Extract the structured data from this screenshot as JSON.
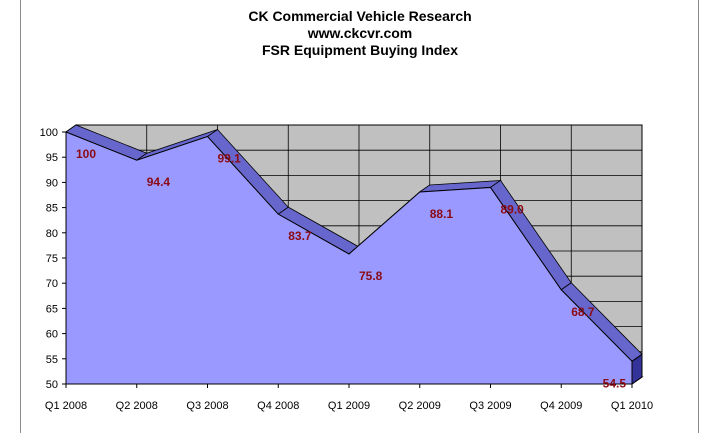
{
  "chart_data": {
    "type": "area",
    "title_lines": [
      "CK Commercial Vehicle Research",
      "www.ckcvr.com",
      "FSR Equipment Buying Index"
    ],
    "categories": [
      "Q1 2008",
      "Q2 2008",
      "Q3 2008",
      "Q4 2008",
      "Q1 2009",
      "Q2 2009",
      "Q3 2009",
      "Q4 2009",
      "Q1 2010"
    ],
    "values": [
      100,
      94.4,
      99.1,
      83.7,
      75.8,
      88.1,
      89.0,
      68.7,
      54.5
    ],
    "data_labels": [
      "100",
      "94.4",
      "99.1",
      "83.7",
      "75.8",
      "88.1",
      "89.0",
      "68.7",
      "54.5"
    ],
    "y_ticks": [
      100,
      95,
      90,
      85,
      80,
      75,
      70,
      65,
      60,
      55,
      50
    ],
    "ylim": [
      50,
      100
    ],
    "grid": true,
    "legend": "none",
    "three_d": true,
    "colors": {
      "area_fill": "#9999ff",
      "area_top_edge": "#6666cc",
      "area_side": "#333399",
      "back_wall": "#c0c0c0",
      "floor": "#a6a6a6",
      "gridline": "#000000",
      "data_label": "#8b0a14"
    }
  }
}
